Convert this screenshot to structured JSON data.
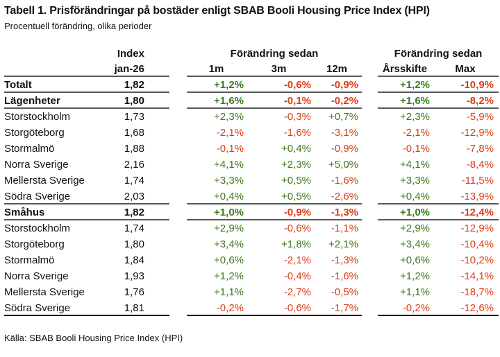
{
  "title": "Tabell 1. Prisförändringar på bostäder enligt SBAB Booli Housing Price Index (HPI)",
  "subtitle": "Procentuell förändring, olika perioder",
  "source": "Källa: SBAB Booli Housing Price Index (HPI)",
  "colors": {
    "positive": "#3a7a1e",
    "negative": "#dc3c14",
    "rule": "#58585a",
    "rule_bottom": "#000000",
    "text": "#111111"
  },
  "chart_data": {
    "type": "table",
    "title": "Tabell 1. Prisförändringar på bostäder enligt SBAB Booli Housing Price Index (HPI)",
    "subtitle": "Procentuell förändring, olika perioder",
    "source": "Källa: SBAB Booli Housing Price Index (HPI)",
    "header": {
      "index_label": "Index",
      "index_period": "jan-26",
      "group1_label": "Förändring sedan",
      "group1_cols": [
        "1m",
        "3m",
        "12m"
      ],
      "group2_label": "Förändring sedan",
      "group2_cols": [
        "Årsskifte",
        "Max"
      ]
    },
    "rows": [
      {
        "label": "Totalt",
        "bold": true,
        "index": "1,82",
        "values": [
          "+1,2%",
          "-0,6%",
          "-0,9%",
          "+1,2%",
          "-10,9%"
        ],
        "rule_below": true
      },
      {
        "label": "Lägenheter",
        "bold": true,
        "index": "1,80",
        "values": [
          "+1,6%",
          "-0,1%",
          "-0,2%",
          "+1,6%",
          "-8,2%"
        ],
        "rule_below": true
      },
      {
        "label": "Storstockholm",
        "bold": false,
        "index": "1,73",
        "values": [
          "+2,3%",
          "-0,3%",
          "+0,7%",
          "+2,3%",
          "-5,9%"
        ],
        "rule_below": false
      },
      {
        "label": "Storgöteborg",
        "bold": false,
        "index": "1,68",
        "values": [
          "-2,1%",
          "-1,6%",
          "-3,1%",
          "-2,1%",
          "-12,9%"
        ],
        "rule_below": false
      },
      {
        "label": "Stormalmö",
        "bold": false,
        "index": "1,88",
        "values": [
          "-0,1%",
          "+0,4%",
          "-0,9%",
          "-0,1%",
          "-7,8%"
        ],
        "rule_below": false
      },
      {
        "label": "Norra Sverige",
        "bold": false,
        "index": "2,16",
        "values": [
          "+4,1%",
          "+2,3%",
          "+5,0%",
          "+4,1%",
          "-8,4%"
        ],
        "rule_below": false
      },
      {
        "label": "Mellersta Sverige",
        "bold": false,
        "index": "1,74",
        "values": [
          "+3,3%",
          "+0,5%",
          "-1,6%",
          "+3,3%",
          "-11,5%"
        ],
        "rule_below": false
      },
      {
        "label": "Södra Sverige",
        "bold": false,
        "index": "2,03",
        "values": [
          "+0,4%",
          "+0,5%",
          "-2,6%",
          "+0,4%",
          "-13,9%"
        ],
        "rule_below": true
      },
      {
        "label": "Småhus",
        "bold": true,
        "index": "1,82",
        "values": [
          "+1,0%",
          "-0,9%",
          "-1,3%",
          "+1,0%",
          "-12,4%"
        ],
        "rule_below": true
      },
      {
        "label": "Storstockholm",
        "bold": false,
        "index": "1,74",
        "values": [
          "+2,9%",
          "-0,6%",
          "-1,1%",
          "+2,9%",
          "-12,9%"
        ],
        "rule_below": false
      },
      {
        "label": "Storgöteborg",
        "bold": false,
        "index": "1,80",
        "values": [
          "+3,4%",
          "+1,8%",
          "+2,1%",
          "+3,4%",
          "-10,4%"
        ],
        "rule_below": false
      },
      {
        "label": "Stormalmö",
        "bold": false,
        "index": "1,84",
        "values": [
          "+0,6%",
          "-2,1%",
          "-1,3%",
          "+0,6%",
          "-10,2%"
        ],
        "rule_below": false
      },
      {
        "label": "Norra Sverige",
        "bold": false,
        "index": "1,93",
        "values": [
          "+1,2%",
          "-0,4%",
          "-1,6%",
          "+1,2%",
          "-14,1%"
        ],
        "rule_below": false
      },
      {
        "label": "Mellersta Sverige",
        "bold": false,
        "index": "1,76",
        "values": [
          "+1,1%",
          "-2,7%",
          "-0,5%",
          "+1,1%",
          "-18,7%"
        ],
        "rule_below": false
      },
      {
        "label": "Södra Sverige",
        "bold": false,
        "index": "1,81",
        "values": [
          "-0,2%",
          "-0,6%",
          "-1,7%",
          "-0,2%",
          "-12,6%"
        ],
        "rule_below": true,
        "rule_black": true
      }
    ]
  }
}
